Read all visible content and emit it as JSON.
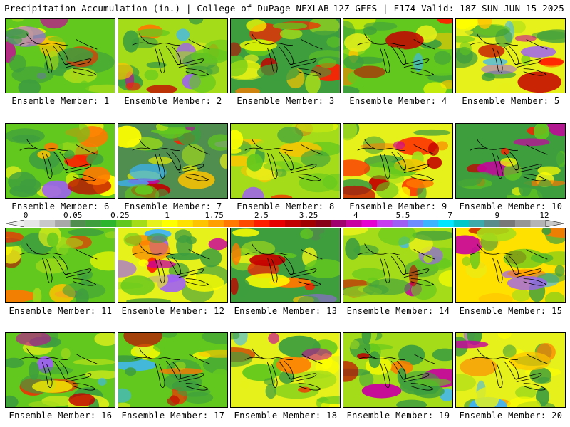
{
  "header": {
    "left_title": "Precipitation Accumulation (in.) | College of DuPage NEXLAB",
    "right_title": "12Z GEFS | F174 Valid: 18Z SUN JUN 15 2025"
  },
  "colorbar": {
    "tick_labels": [
      "0",
      "0.05",
      "0.25",
      "1",
      "1.75",
      "2.5",
      "3.25",
      "4",
      "5.5",
      "7",
      "9",
      "12"
    ],
    "colors": [
      "#e6e6e6",
      "#c8c8c8",
      "#a8a8a8",
      "#4f8e4f",
      "#3e9e3e",
      "#2db52d",
      "#63c81e",
      "#a5dc1a",
      "#e6f01a",
      "#ffff00",
      "#ffe100",
      "#ffc400",
      "#ffa000",
      "#ff7800",
      "#ff4b00",
      "#ff1e00",
      "#e60000",
      "#c30000",
      "#a00000",
      "#870018",
      "#a0006e",
      "#c800a0",
      "#e600d2",
      "#c83cf0",
      "#9e5ff5",
      "#6e8cff",
      "#3cb4ff",
      "#00e6ff",
      "#00c8c8",
      "#3caaaa",
      "#5a8c8c",
      "#787878",
      "#969696",
      "#b4b4b4"
    ]
  },
  "panel_label_prefix": "Ensemble Member:",
  "members": [
    {
      "number": "1",
      "dominant": "#63c81e"
    },
    {
      "number": "2",
      "dominant": "#a5dc1a"
    },
    {
      "number": "3",
      "dominant": "#3e9e3e"
    },
    {
      "number": "4",
      "dominant": "#63c81e"
    },
    {
      "number": "5",
      "dominant": "#e6f01a"
    },
    {
      "number": "6",
      "dominant": "#63c81e"
    },
    {
      "number": "7",
      "dominant": "#4f8e4f"
    },
    {
      "number": "8",
      "dominant": "#a5dc1a"
    },
    {
      "number": "9",
      "dominant": "#e6f01a"
    },
    {
      "number": "10",
      "dominant": "#3e9e3e"
    },
    {
      "number": "11",
      "dominant": "#63c81e"
    },
    {
      "number": "12",
      "dominant": "#e6f01a"
    },
    {
      "number": "13",
      "dominant": "#3e9e3e"
    },
    {
      "number": "14",
      "dominant": "#a5dc1a"
    },
    {
      "number": "15",
      "dominant": "#ffe100"
    },
    {
      "number": "16",
      "dominant": "#63c81e"
    },
    {
      "number": "17",
      "dominant": "#63c81e"
    },
    {
      "number": "18",
      "dominant": "#e6f01a"
    },
    {
      "number": "19",
      "dominant": "#a5dc1a"
    },
    {
      "number": "20",
      "dominant": "#e6f01a"
    }
  ]
}
